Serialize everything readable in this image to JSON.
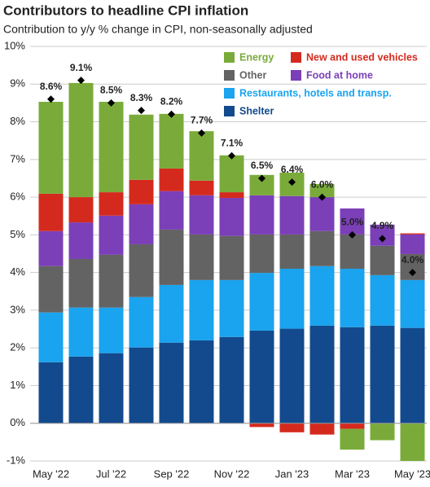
{
  "chart_data": {
    "type": "stacked-bar",
    "title": "Contributors to headline CPI inflation",
    "subtitle": "Contribution to y/y % change in CPI, non-seasonally adjusted",
    "categories": [
      "May '22",
      null,
      "Jul '22",
      null,
      "Sep '22",
      null,
      "Nov '22",
      null,
      "Jan '23",
      null,
      "Mar '23",
      null,
      "May '23"
    ],
    "ylim": [
      -1,
      10
    ],
    "yticks": [
      {
        "value": -1,
        "label": "-1%"
      },
      {
        "value": 0,
        "label": "0%"
      },
      {
        "value": 1,
        "label": "1%"
      },
      {
        "value": 2,
        "label": "2%"
      },
      {
        "value": 3,
        "label": "3%"
      },
      {
        "value": 4,
        "label": "4%"
      },
      {
        "value": 5,
        "label": "5%"
      },
      {
        "value": 6,
        "label": "6%"
      },
      {
        "value": 7,
        "label": "7%"
      },
      {
        "value": 8,
        "label": "8%"
      },
      {
        "value": 9,
        "label": "9%"
      },
      {
        "value": 10,
        "label": "10%"
      }
    ],
    "grid": true,
    "series": [
      {
        "name": "Shelter",
        "color": "#134a8e",
        "values": [
          1.62,
          1.77,
          1.86,
          2.01,
          2.14,
          2.2,
          2.29,
          2.46,
          2.51,
          2.59,
          2.55,
          2.59,
          2.53
        ]
      },
      {
        "name": "Restaurants, hotels and transp.",
        "color": "#1aa3ee",
        "values": [
          1.32,
          1.3,
          1.21,
          1.34,
          1.53,
          1.6,
          1.51,
          1.53,
          1.59,
          1.58,
          1.55,
          1.34,
          1.27
        ]
      },
      {
        "name": "Other",
        "color": "#636363",
        "values": [
          1.23,
          1.29,
          1.4,
          1.4,
          1.47,
          1.21,
          1.17,
          1.02,
          0.91,
          0.93,
          0.91,
          0.78,
          0.69
        ]
      },
      {
        "name": "Food at home",
        "color": "#7b3fb8",
        "values": [
          0.93,
          0.97,
          1.04,
          1.06,
          1.02,
          1.04,
          1.01,
          1.04,
          1.02,
          0.9,
          0.69,
          0.56,
          0.52
        ]
      },
      {
        "name": "New and used vehicles",
        "color": "#d42a1e",
        "values": [
          0.99,
          0.67,
          0.62,
          0.65,
          0.6,
          0.39,
          0.15,
          -0.1,
          -0.24,
          -0.3,
          -0.15,
          0,
          0.03
        ]
      },
      {
        "name": "Energy",
        "color": "#7aab3a",
        "values": [
          2.44,
          3.03,
          2.4,
          1.73,
          1.45,
          1.31,
          0.98,
          0.54,
          0.62,
          0.35,
          -0.55,
          -0.45,
          -1.0
        ]
      }
    ],
    "headline": {
      "values": [
        8.6,
        9.1,
        8.5,
        8.3,
        8.2,
        7.7,
        7.1,
        6.5,
        6.4,
        6.0,
        5.0,
        4.9,
        4.0
      ],
      "value_labels": [
        "8.6%",
        "9.1%",
        "8.5%",
        "8.3%",
        "8.2%",
        "7.7%",
        "7.1%",
        "6.5%",
        "6.4%",
        "6.0%",
        "5.0%",
        "4.9%",
        "4.0%"
      ]
    }
  }
}
